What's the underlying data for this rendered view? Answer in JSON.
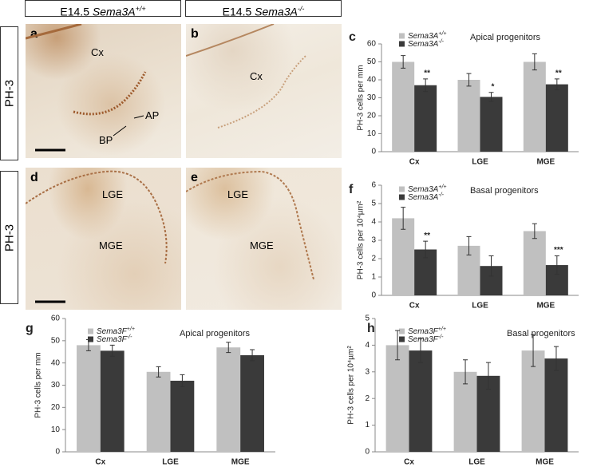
{
  "figure": {
    "headers": [
      "E14.5 Sema3A+/+",
      "E14.5 Sema3A-/-"
    ],
    "side_labels": [
      "PH-3",
      "PH-3"
    ],
    "images": [
      {
        "label": "a",
        "annotations": [
          "Cx",
          "AP",
          "BP"
        ]
      },
      {
        "label": "b",
        "annotations": [
          "Cx"
        ]
      },
      {
        "label": "d",
        "annotations": [
          "LGE",
          "MGE"
        ]
      },
      {
        "label": "e",
        "annotations": [
          "LGE",
          "MGE"
        ]
      }
    ]
  },
  "chart_data": [
    {
      "type": "bar",
      "panel": "c",
      "ylabel": "PH-3 cells per mm",
      "annotation": "Apical progenitors",
      "categories": [
        "Cx",
        "LGE",
        "MGE"
      ],
      "series": [
        {
          "name": "Sema3A+/+",
          "color": "#c0c0c0",
          "values": [
            50,
            40,
            50
          ],
          "errors": [
            3.5,
            3.5,
            4.5
          ]
        },
        {
          "name": "Sema3A-/-",
          "color": "#3a3a3a",
          "values": [
            37,
            30.5,
            37.5
          ],
          "errors": [
            3.5,
            2.5,
            3
          ],
          "significance": [
            "**",
            "*",
            "**"
          ]
        }
      ],
      "ylim": [
        0,
        60
      ],
      "yticks": [
        0,
        10,
        20,
        30,
        40,
        50,
        60
      ]
    },
    {
      "type": "bar",
      "panel": "f",
      "ylabel": "PH-3 cells per 10⁴µm²",
      "annotation": "Basal progenitors",
      "categories": [
        "Cx",
        "LGE",
        "MGE"
      ],
      "series": [
        {
          "name": "Sema3A+/+",
          "color": "#c0c0c0",
          "values": [
            4.2,
            2.7,
            3.5
          ],
          "errors": [
            0.6,
            0.5,
            0.4
          ]
        },
        {
          "name": "Sema3A-/-",
          "color": "#3a3a3a",
          "values": [
            2.5,
            1.6,
            1.65
          ],
          "errors": [
            0.45,
            0.55,
            0.5
          ],
          "significance": [
            "**",
            null,
            "***"
          ]
        }
      ],
      "ylim": [
        0,
        6
      ],
      "yticks": [
        0,
        1,
        2,
        3,
        4,
        5,
        6
      ]
    },
    {
      "type": "bar",
      "panel": "g",
      "ylabel": "PH-3 cells per mm",
      "annotation": "Apical progenitors",
      "categories": [
        "Cx",
        "LGE",
        "MGE"
      ],
      "series": [
        {
          "name": "Sema3F+/+",
          "color": "#c0c0c0",
          "values": [
            48,
            36,
            47
          ],
          "errors": [
            2.5,
            2.3,
            2.3
          ]
        },
        {
          "name": "Sema3F-/-",
          "color": "#3a3a3a",
          "values": [
            45.5,
            32,
            43.5
          ],
          "errors": [
            2.5,
            2.7,
            2.5
          ]
        }
      ],
      "ylim": [
        0,
        60
      ],
      "yticks": [
        0,
        10,
        20,
        30,
        40,
        50,
        60
      ]
    },
    {
      "type": "bar",
      "panel": "h",
      "ylabel": "PH-3 cells per 10⁴µm²",
      "annotation": "Basal progenitors",
      "categories": [
        "Cx",
        "LGE",
        "MGE"
      ],
      "series": [
        {
          "name": "Sema3F+/+",
          "color": "#c0c0c0",
          "values": [
            4.0,
            3.0,
            3.8
          ],
          "errors": [
            0.55,
            0.45,
            0.6
          ]
        },
        {
          "name": "Sema3F-/-",
          "color": "#3a3a3a",
          "values": [
            3.8,
            2.85,
            3.5
          ],
          "errors": [
            0.45,
            0.5,
            0.45
          ]
        }
      ],
      "ylim": [
        0,
        5
      ],
      "yticks": [
        0,
        1,
        2,
        3,
        4,
        5
      ]
    }
  ]
}
